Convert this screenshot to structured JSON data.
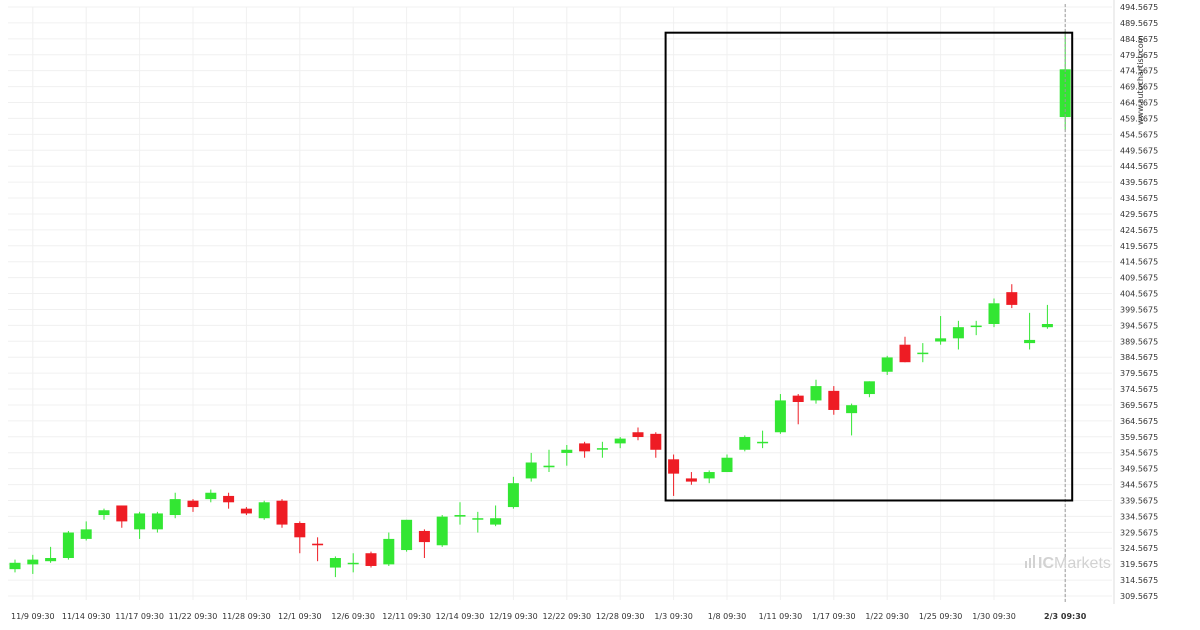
{
  "chart_data": {
    "type": "candlestick",
    "x_tick_labels": [
      "11/9 09:30",
      "11/14 09:30",
      "11/17 09:30",
      "11/22 09:30",
      "11/28 09:30",
      "12/1 09:30",
      "12/6 09:30",
      "12/11 09:30",
      "12/14 09:30",
      "12/19 09:30",
      "12/22 09:30",
      "12/28 09:30",
      "1/3 09:30",
      "1/8 09:30",
      "1/11 09:30",
      "1/17 09:30",
      "1/22 09:30",
      "1/25 09:30",
      "1/30 09:30",
      "2/3 09:30"
    ],
    "y_tick_labels": [
      "494.5675",
      "489.5675",
      "484.5675",
      "479.5675",
      "474.5675",
      "469.5675",
      "464.5675",
      "459.5675",
      "454.5675",
      "449.5675",
      "444.5675",
      "439.5675",
      "434.5675",
      "429.5675",
      "424.5675",
      "419.5675",
      "414.5675",
      "409.5675",
      "404.5675",
      "399.5675",
      "394.5675",
      "389.5675",
      "384.5675",
      "379.5675",
      "374.5675",
      "369.5675",
      "364.5675",
      "359.5675",
      "354.5675",
      "349.5675",
      "344.5675",
      "339.5675",
      "334.5675",
      "329.5675",
      "324.5675",
      "319.5675",
      "314.5675",
      "309.5675"
    ],
    "ylim": [
      306.5675,
      496.5675
    ],
    "colors": {
      "up": "#33e633",
      "down": "#ee1c24",
      "box": "#000000",
      "grid": "#f0f0f0"
    },
    "candles": [
      {
        "o": 318,
        "h": 321,
        "l": 317,
        "c": 320
      },
      {
        "o": 319.5,
        "h": 322.5,
        "l": 316.5,
        "c": 321
      },
      {
        "o": 320.5,
        "h": 325,
        "l": 320,
        "c": 321.5
      },
      {
        "o": 321.5,
        "h": 330,
        "l": 321,
        "c": 329.5
      },
      {
        "o": 327.5,
        "h": 333,
        "l": 327,
        "c": 330.5
      },
      {
        "o": 335,
        "h": 337,
        "l": 333.5,
        "c": 336.5
      },
      {
        "o": 338,
        "h": 338,
        "l": 331,
        "c": 333
      },
      {
        "o": 330.5,
        "h": 336,
        "l": 327.5,
        "c": 335.5
      },
      {
        "o": 330.5,
        "h": 336,
        "l": 329.5,
        "c": 335.5
      },
      {
        "o": 335,
        "h": 342,
        "l": 334,
        "c": 340
      },
      {
        "o": 339.5,
        "h": 340,
        "l": 336,
        "c": 337.5
      },
      {
        "o": 340,
        "h": 343,
        "l": 339,
        "c": 342
      },
      {
        "o": 341,
        "h": 342,
        "l": 337,
        "c": 339
      },
      {
        "o": 337,
        "h": 337.5,
        "l": 335,
        "c": 335.5
      },
      {
        "o": 334,
        "h": 339.5,
        "l": 333.5,
        "c": 339
      },
      {
        "o": 339.5,
        "h": 340,
        "l": 331,
        "c": 332
      },
      {
        "o": 332.5,
        "h": 333,
        "l": 323,
        "c": 328
      },
      {
        "o": 326,
        "h": 328,
        "l": 320.5,
        "c": 325.5
      },
      {
        "o": 318.5,
        "h": 322,
        "l": 315.5,
        "c": 321.5
      },
      {
        "o": 320,
        "h": 323,
        "l": 317,
        "c": 320
      },
      {
        "o": 323,
        "h": 323.5,
        "l": 318.5,
        "c": 319
      },
      {
        "o": 319.5,
        "h": 329.5,
        "l": 319,
        "c": 327.5
      },
      {
        "o": 324,
        "h": 333.5,
        "l": 323.5,
        "c": 333.5
      },
      {
        "o": 330,
        "h": 330.5,
        "l": 321.5,
        "c": 326.5
      },
      {
        "o": 325.5,
        "h": 335,
        "l": 325,
        "c": 334.5
      },
      {
        "o": 334.5,
        "h": 339,
        "l": 332,
        "c": 335
      },
      {
        "o": 334,
        "h": 336,
        "l": 329.5,
        "c": 334
      },
      {
        "o": 332,
        "h": 338,
        "l": 331.5,
        "c": 334
      },
      {
        "o": 337.5,
        "h": 347,
        "l": 337,
        "c": 345
      },
      {
        "o": 346.5,
        "h": 354.5,
        "l": 345.5,
        "c": 351.5
      },
      {
        "o": 350,
        "h": 355.5,
        "l": 348.5,
        "c": 350.5
      },
      {
        "o": 354.5,
        "h": 357,
        "l": 350.5,
        "c": 355.5
      },
      {
        "o": 357.5,
        "h": 358,
        "l": 353,
        "c": 355
      },
      {
        "o": 356,
        "h": 358,
        "l": 353,
        "c": 356
      },
      {
        "o": 357.5,
        "h": 359.5,
        "l": 356,
        "c": 359
      },
      {
        "o": 361,
        "h": 362.5,
        "l": 358.5,
        "c": 359.5
      },
      {
        "o": 360.5,
        "h": 361,
        "l": 353,
        "c": 355.5
      },
      {
        "o": 352.5,
        "h": 354,
        "l": 341,
        "c": 348
      },
      {
        "o": 346.5,
        "h": 348.5,
        "l": 344.5,
        "c": 345.5
      },
      {
        "o": 346.5,
        "h": 349,
        "l": 345,
        "c": 348.5
      },
      {
        "o": 348.5,
        "h": 354,
        "l": 348.5,
        "c": 353
      },
      {
        "o": 355.5,
        "h": 360,
        "l": 355,
        "c": 359.5
      },
      {
        "o": 358,
        "h": 361.5,
        "l": 356,
        "c": 358
      },
      {
        "o": 361,
        "h": 373,
        "l": 360.5,
        "c": 371
      },
      {
        "o": 372.5,
        "h": 373,
        "l": 363.5,
        "c": 370.5
      },
      {
        "o": 371,
        "h": 377.5,
        "l": 370,
        "c": 375.5
      },
      {
        "o": 374,
        "h": 375.5,
        "l": 366.5,
        "c": 368
      },
      {
        "o": 367,
        "h": 370,
        "l": 360,
        "c": 369.5
      },
      {
        "o": 373,
        "h": 377,
        "l": 372,
        "c": 377
      },
      {
        "o": 380,
        "h": 385,
        "l": 379,
        "c": 384.5
      },
      {
        "o": 388.5,
        "h": 391,
        "l": 383,
        "c": 383
      },
      {
        "o": 386,
        "h": 389,
        "l": 383,
        "c": 386
      },
      {
        "o": 389.5,
        "h": 397.5,
        "l": 388.5,
        "c": 390.5
      },
      {
        "o": 390.5,
        "h": 396,
        "l": 387,
        "c": 394
      },
      {
        "o": 394.5,
        "h": 396,
        "l": 391.5,
        "c": 394.5
      },
      {
        "o": 395,
        "h": 403,
        "l": 394,
        "c": 401.5
      },
      {
        "o": 405,
        "h": 407.5,
        "l": 400,
        "c": 401
      },
      {
        "o": 389,
        "h": 398.5,
        "l": 387,
        "c": 390
      },
      {
        "o": 394,
        "h": 401,
        "l": 393.5,
        "c": 395
      },
      {
        "o": 460,
        "h": 487,
        "l": 456,
        "c": 475
      }
    ],
    "candle_x_start": 15,
    "candle_x_step": 17.8,
    "x_tick_candle_index": [
      1,
      4,
      7,
      10,
      13,
      16,
      19,
      22,
      25,
      28,
      31,
      34,
      37,
      40,
      43,
      46,
      49,
      52,
      55,
      59
    ],
    "highlight_box": {
      "start_index": 37,
      "end_index": 59,
      "y_low": 339.5675,
      "y_high": 486.5
    },
    "current_marker_index": 59
  },
  "watermark": {
    "site": "www.autochartist.com",
    "brand_prefix": "IC",
    "brand_name": "Markets"
  }
}
